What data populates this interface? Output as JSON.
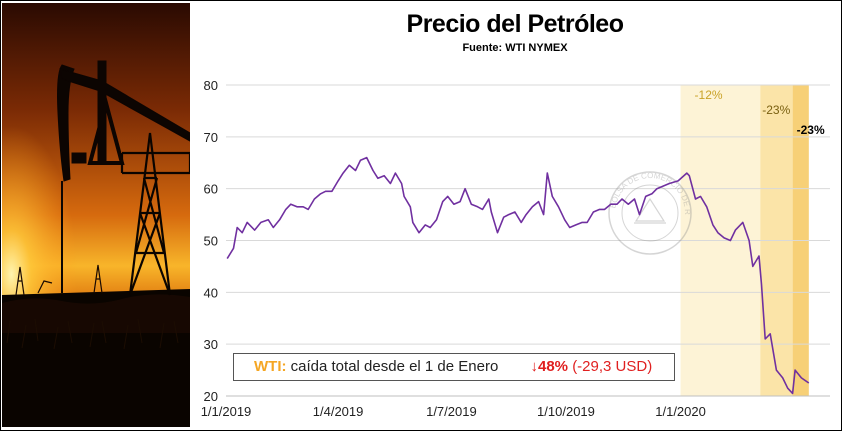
{
  "chart_data": {
    "type": "line",
    "title": "Precio del Petróleo",
    "subtitle": "Fuente: WTI NYMEX",
    "ylim": [
      20,
      80
    ],
    "yticks": [
      20,
      30,
      40,
      50,
      60,
      70,
      80
    ],
    "xlim": [
      "2019-01-01",
      "2020-04-30"
    ],
    "xticks": [
      "2019-01-01",
      "2019-04-01",
      "2019-07-01",
      "2019-10-01",
      "2020-01-01"
    ],
    "xtick_labels": [
      "1/1/2019",
      "1/4/2019",
      "1/7/2019",
      "1/10/2019",
      "1/1/2020"
    ],
    "grid": "horizontal",
    "line_color": "#7030A0",
    "series": [
      {
        "x": [
          "2019-01-02",
          "2019-01-07",
          "2019-01-10",
          "2019-01-14",
          "2019-01-18",
          "2019-01-24",
          "2019-01-29",
          "2019-02-04",
          "2019-02-08",
          "2019-02-13",
          "2019-02-18",
          "2019-02-22",
          "2019-02-27",
          "2019-03-04",
          "2019-03-08",
          "2019-03-13",
          "2019-03-18",
          "2019-03-22",
          "2019-03-27",
          "2019-04-01",
          "2019-04-05",
          "2019-04-10",
          "2019-04-15",
          "2019-04-19",
          "2019-04-24",
          "2019-04-29",
          "2019-05-03",
          "2019-05-08",
          "2019-05-13",
          "2019-05-17",
          "2019-05-22",
          "2019-05-24",
          "2019-05-29",
          "2019-05-31",
          "2019-06-05",
          "2019-06-10",
          "2019-06-14",
          "2019-06-19",
          "2019-06-24",
          "2019-06-28",
          "2019-07-03",
          "2019-07-08",
          "2019-07-12",
          "2019-07-17",
          "2019-07-22",
          "2019-07-26",
          "2019-07-31",
          "2019-08-02",
          "2019-08-07",
          "2019-08-12",
          "2019-08-16",
          "2019-08-21",
          "2019-08-26",
          "2019-08-30",
          "2019-09-04",
          "2019-09-09",
          "2019-09-13",
          "2019-09-16",
          "2019-09-20",
          "2019-09-25",
          "2019-09-30",
          "2019-10-04",
          "2019-10-09",
          "2019-10-14",
          "2019-10-18",
          "2019-10-23",
          "2019-10-28",
          "2019-11-01",
          "2019-11-06",
          "2019-11-11",
          "2019-11-15",
          "2019-11-20",
          "2019-11-25",
          "2019-11-29",
          "2019-12-04",
          "2019-12-09",
          "2019-12-13",
          "2019-12-18",
          "2019-12-23",
          "2019-12-30",
          "2020-01-06",
          "2020-01-08",
          "2020-01-13",
          "2020-01-17",
          "2020-01-22",
          "2020-01-27",
          "2020-01-31",
          "2020-02-05",
          "2020-02-10",
          "2020-02-14",
          "2020-02-20",
          "2020-02-25",
          "2020-02-28",
          "2020-03-04",
          "2020-03-06",
          "2020-03-09",
          "2020-03-13",
          "2020-03-18",
          "2020-03-23",
          "2020-03-27",
          "2020-03-31",
          "2020-04-02",
          "2020-04-07",
          "2020-04-13"
        ],
        "y": [
          46.5,
          48.5,
          52.5,
          51.5,
          53.5,
          52.0,
          53.5,
          54.0,
          52.5,
          54.0,
          56.0,
          57.0,
          56.5,
          56.5,
          56.0,
          58.0,
          59.0,
          59.5,
          59.5,
          61.5,
          63.0,
          64.5,
          63.5,
          65.5,
          66.0,
          63.5,
          62.0,
          62.5,
          61.0,
          63.0,
          61.0,
          58.5,
          56.5,
          53.5,
          51.5,
          53.0,
          52.5,
          54.0,
          57.5,
          58.5,
          57.0,
          57.5,
          60.0,
          57.0,
          56.5,
          56.0,
          58.0,
          55.5,
          51.5,
          54.5,
          55.0,
          55.5,
          53.5,
          55.0,
          56.5,
          57.5,
          55.0,
          63.0,
          58.5,
          56.5,
          54.0,
          52.5,
          53.0,
          53.5,
          53.5,
          55.5,
          56.0,
          56.0,
          57.0,
          57.0,
          58.0,
          57.0,
          58.0,
          55.0,
          58.5,
          59.0,
          60.0,
          60.5,
          61.0,
          61.5,
          63.0,
          62.5,
          58.0,
          58.5,
          56.5,
          53.0,
          51.5,
          50.5,
          50.0,
          52.0,
          53.5,
          50.0,
          45.0,
          47.0,
          41.5,
          31.0,
          32.0,
          25.0,
          23.5,
          21.5,
          20.5,
          25.0,
          23.5,
          22.5
        ]
      }
    ],
    "shaded_periods": [
      {
        "from": "2020-01-01",
        "to": "2020-03-05",
        "color": "#FDF3D6",
        "label": "-12%",
        "label_color": "#C9A227"
      },
      {
        "from": "2020-03-05",
        "to": "2020-03-31",
        "color": "#FBE4A8",
        "label": "-23%",
        "label_color": "#7A6010"
      },
      {
        "from": "2020-03-31",
        "to": "2020-04-13",
        "color": "#F7D077",
        "label": "-23%",
        "label_color": "#000000"
      }
    ],
    "summary": {
      "name": "WTI:",
      "text": "caída total desde el 1 de Enero",
      "change_arrow": "↓",
      "change_pct": "48%",
      "change_usd": "(-29,3 USD)"
    }
  }
}
